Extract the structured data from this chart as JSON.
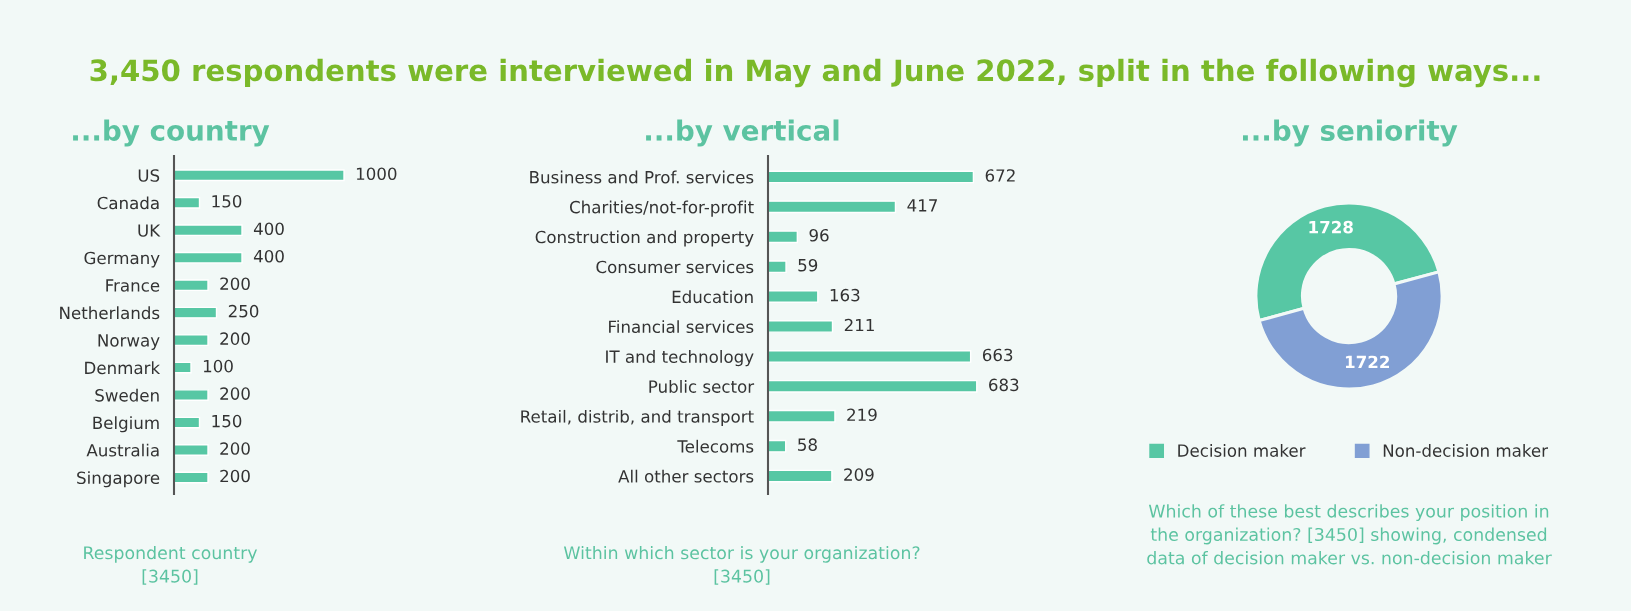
{
  "chart_data": [
    {
      "type": "other",
      "title": "3,450 respondents were interviewed in May and June 2022, split in the following ways..."
    },
    {
      "type": "bar",
      "orientation": "horizontal",
      "title": "...by country",
      "categories": [
        "US",
        "Canada",
        "UK",
        "Germany",
        "France",
        "Netherlands",
        "Norway",
        "Denmark",
        "Sweden",
        "Belgium",
        "Australia",
        "Singapore"
      ],
      "values": [
        1000,
        150,
        400,
        400,
        200,
        250,
        200,
        100,
        200,
        150,
        200,
        200
      ],
      "color": "#57c7a4",
      "data_labels": true,
      "annotations": [
        "Respondent country\n[3450]"
      ]
    },
    {
      "type": "bar",
      "orientation": "horizontal",
      "title": "...by vertical",
      "categories": [
        "Business and Prof. services",
        "Charities/not-for-profit",
        "Construction and property",
        "Consumer services",
        "Education",
        "Financial services",
        "IT and technology",
        "Public sector",
        "Retail, distrib, and transport",
        "Telecoms",
        "All other sectors"
      ],
      "values": [
        672,
        417,
        96,
        59,
        163,
        211,
        663,
        683,
        219,
        58,
        209
      ],
      "color": "#57c7a4",
      "data_labels": true,
      "annotations": [
        "Within which sector is your organization?\n[3450]"
      ]
    },
    {
      "type": "donut",
      "title": "...by seniority",
      "categories": [
        "Decision maker",
        "Non-decision maker"
      ],
      "values": [
        1728,
        1722
      ],
      "colors": [
        "#57c7a4",
        "#819fd4"
      ],
      "data_labels": true,
      "legend": "bottom",
      "annotations": [
        "Which of these best describes your position in\nthe organization? [3450] showing, condensed\ndata of decision maker vs. non-decision maker"
      ]
    }
  ]
}
